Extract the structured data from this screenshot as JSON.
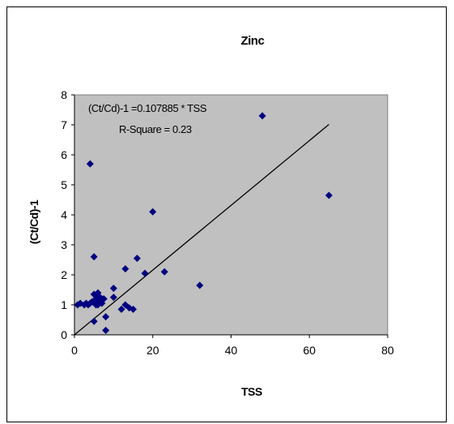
{
  "chart_data": {
    "type": "scatter",
    "title": "Zinc",
    "xlabel": "TSS",
    "ylabel": "(Ct/Cd)-1",
    "xlim": [
      0,
      80
    ],
    "ylim": [
      0,
      8
    ],
    "xticks": [
      "0",
      "20",
      "40",
      "60",
      "80"
    ],
    "yticks": [
      "0",
      "1",
      "2",
      "3",
      "4",
      "5",
      "6",
      "7",
      "8"
    ],
    "grid": false,
    "legend": "none",
    "plot_background": "#c0c0c0",
    "marker_color": "#000080",
    "annotations": {
      "equation": "(Ct/Cd)-1 =0.107885 * TSS",
      "r_square": "R-Square = 0.23"
    },
    "trendline": {
      "slope": 0.107885,
      "x": [
        0,
        65
      ]
    },
    "series": [
      {
        "x": [
          0.8,
          1.5,
          2.5,
          3.0,
          3.5,
          4.0,
          4.5,
          5.0,
          5.0,
          5.0,
          5.0,
          5.5,
          5.5,
          5.5,
          6.0,
          6.0,
          6.0,
          6.5,
          6.5,
          7.0,
          7.0,
          7.5,
          8.0,
          8.0,
          10.0,
          10.0,
          12.0,
          13.0,
          13.0,
          14.0,
          15.0,
          16.0,
          18.0,
          20.0,
          23.0,
          32.0,
          48.0,
          65.0,
          4.0
        ],
        "y": [
          1.0,
          1.05,
          1.0,
          1.05,
          1.0,
          1.05,
          1.1,
          0.45,
          1.35,
          1.1,
          2.6,
          1.0,
          1.3,
          1.2,
          1.0,
          1.4,
          1.15,
          1.1,
          1.25,
          1.2,
          1.05,
          1.2,
          0.15,
          0.6,
          1.55,
          1.25,
          0.85,
          2.2,
          1.0,
          0.9,
          0.85,
          2.55,
          2.05,
          4.1,
          2.1,
          1.65,
          7.3,
          4.65,
          5.7
        ]
      }
    ]
  }
}
